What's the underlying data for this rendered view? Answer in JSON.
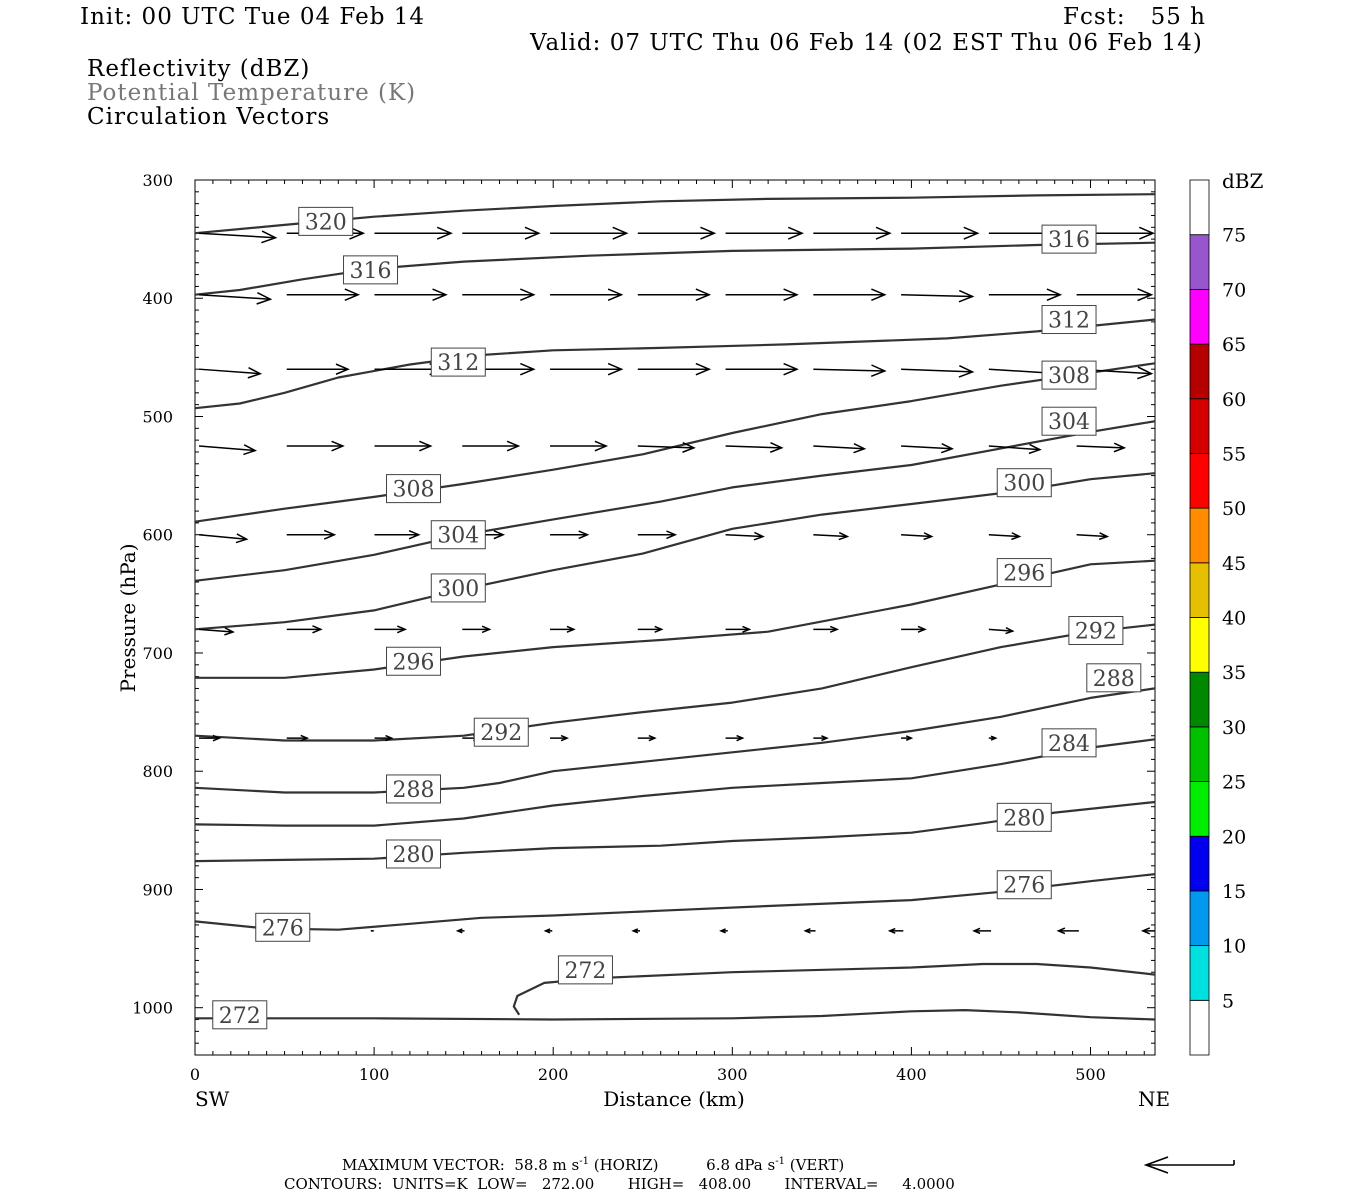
{
  "header": {
    "init": "Init: 00 UTC Tue 04 Feb 14",
    "fcst": "Fcst:   55 h",
    "valid": "Valid: 07 UTC Thu 06 Feb 14 (02 EST Thu 06 Feb 14)",
    "field1": "Reflectivity (dBZ)",
    "field2": "Potential Temperature (K)",
    "field3": "Circulation Vectors"
  },
  "footer": {
    "max_vector_prefix": "MAXIMUM VECTOR:  58.8 m s",
    "max_vector_exp1": "-1",
    "max_vector_mid": " (HORIZ)          6.8 dPa s",
    "max_vector_exp2": "-1",
    "max_vector_suffix": " (VERT)",
    "contours": "CONTOURS:  UNITS=K  LOW=   272.00       HIGH=   408.00       INTERVAL=     4.0000"
  },
  "colors": {
    "contour": "#333333",
    "label_text": "#444444",
    "vector": "#000000",
    "colorbar": [
      "#ffffff",
      "#00e0e0",
      "#0099ee",
      "#0000ee",
      "#00ee00",
      "#00c000",
      "#008800",
      "#ffff00",
      "#e6c000",
      "#ff8c00",
      "#ff0000",
      "#d40000",
      "#b40000",
      "#ff00ff",
      "#9955cc",
      "#ffffff"
    ]
  },
  "chart_data": {
    "type": "cross-section",
    "xlabel": "Distance (km)",
    "ylabel": "Pressure (hPa)",
    "x_left_label": "SW",
    "x_right_label": "NE",
    "xlim": [
      0,
      536
    ],
    "ylim": [
      1040,
      300
    ],
    "x_ticks": [
      0,
      100,
      200,
      300,
      400,
      500
    ],
    "y_ticks": [
      300,
      400,
      500,
      600,
      700,
      800,
      900,
      1000
    ],
    "colorbar": {
      "unit": "dBZ",
      "labels": [
        "5",
        "10",
        "15",
        "20",
        "25",
        "30",
        "35",
        "40",
        "45",
        "50",
        "55",
        "60",
        "65",
        "70",
        "75"
      ]
    },
    "contours": [
      {
        "level": 320,
        "points": [
          [
            0,
            345
          ],
          [
            50,
            338
          ],
          [
            100,
            331
          ],
          [
            150,
            326
          ],
          [
            200,
            322
          ],
          [
            260,
            318
          ],
          [
            320,
            316
          ],
          [
            400,
            315
          ],
          [
            470,
            313
          ],
          [
            536,
            312
          ]
        ]
      },
      {
        "level": 316,
        "points": [
          [
            0,
            397
          ],
          [
            25,
            393
          ],
          [
            60,
            384
          ],
          [
            100,
            375
          ],
          [
            150,
            369
          ],
          [
            220,
            364
          ],
          [
            300,
            360
          ],
          [
            400,
            358
          ],
          [
            470,
            355
          ],
          [
            536,
            353
          ]
        ]
      },
      {
        "level": 312,
        "points": [
          [
            0,
            493
          ],
          [
            25,
            489
          ],
          [
            50,
            480
          ],
          [
            80,
            467
          ],
          [
            120,
            456
          ],
          [
            160,
            448
          ],
          [
            200,
            444
          ],
          [
            260,
            442
          ],
          [
            330,
            439
          ],
          [
            420,
            434
          ],
          [
            470,
            428
          ],
          [
            536,
            418
          ]
        ]
      },
      {
        "level": 308,
        "points": [
          [
            0,
            589
          ],
          [
            50,
            578
          ],
          [
            100,
            568
          ],
          [
            150,
            557
          ],
          [
            200,
            545
          ],
          [
            250,
            532
          ],
          [
            300,
            514
          ],
          [
            350,
            498
          ],
          [
            400,
            487
          ],
          [
            450,
            474
          ],
          [
            500,
            463
          ],
          [
            536,
            455
          ]
        ]
      },
      {
        "level": 304,
        "points": [
          [
            0,
            639
          ],
          [
            50,
            630
          ],
          [
            100,
            617
          ],
          [
            150,
            600
          ],
          [
            200,
            587
          ],
          [
            260,
            572
          ],
          [
            300,
            560
          ],
          [
            350,
            550
          ],
          [
            400,
            541
          ],
          [
            450,
            527
          ],
          [
            500,
            513
          ],
          [
            536,
            504
          ]
        ]
      },
      {
        "level": 300,
        "points": [
          [
            0,
            680
          ],
          [
            50,
            674
          ],
          [
            100,
            664
          ],
          [
            150,
            646
          ],
          [
            200,
            630
          ],
          [
            250,
            616
          ],
          [
            300,
            595
          ],
          [
            350,
            583
          ],
          [
            400,
            574
          ],
          [
            460,
            563
          ],
          [
            500,
            553
          ],
          [
            536,
            548
          ]
        ]
      },
      {
        "level": 296,
        "points": [
          [
            0,
            721
          ],
          [
            50,
            721
          ],
          [
            100,
            714
          ],
          [
            150,
            703
          ],
          [
            200,
            695
          ],
          [
            260,
            689
          ],
          [
            320,
            682
          ],
          [
            400,
            659
          ],
          [
            450,
            642
          ],
          [
            500,
            625
          ],
          [
            536,
            622
          ]
        ]
      },
      {
        "level": 292,
        "points": [
          [
            0,
            770
          ],
          [
            50,
            774
          ],
          [
            100,
            774
          ],
          [
            150,
            770
          ],
          [
            200,
            759
          ],
          [
            250,
            750
          ],
          [
            300,
            742
          ],
          [
            350,
            730
          ],
          [
            400,
            712
          ],
          [
            450,
            695
          ],
          [
            500,
            682
          ],
          [
            536,
            676
          ]
        ]
      },
      {
        "level": 288,
        "points": [
          [
            0,
            814
          ],
          [
            50,
            818
          ],
          [
            100,
            818
          ],
          [
            150,
            814
          ],
          [
            170,
            810
          ],
          [
            200,
            800
          ],
          [
            250,
            792
          ],
          [
            300,
            784
          ],
          [
            350,
            776
          ],
          [
            400,
            766
          ],
          [
            450,
            754
          ],
          [
            500,
            738
          ],
          [
            536,
            730
          ]
        ]
      },
      {
        "level": 284,
        "points": [
          [
            0,
            845
          ],
          [
            50,
            846
          ],
          [
            100,
            846
          ],
          [
            150,
            840
          ],
          [
            200,
            829
          ],
          [
            250,
            821
          ],
          [
            300,
            814
          ],
          [
            350,
            810
          ],
          [
            400,
            806
          ],
          [
            450,
            794
          ],
          [
            500,
            780
          ],
          [
            536,
            773
          ]
        ]
      },
      {
        "level": 280,
        "points": [
          [
            0,
            876
          ],
          [
            50,
            875
          ],
          [
            100,
            874
          ],
          [
            150,
            869
          ],
          [
            200,
            865
          ],
          [
            260,
            863
          ],
          [
            300,
            859
          ],
          [
            350,
            856
          ],
          [
            400,
            852
          ],
          [
            440,
            844
          ],
          [
            480,
            835
          ],
          [
            536,
            826
          ]
        ]
      },
      {
        "level": 276,
        "points": [
          [
            0,
            927
          ],
          [
            40,
            933
          ],
          [
            80,
            934
          ],
          [
            120,
            929
          ],
          [
            160,
            924
          ],
          [
            200,
            922
          ],
          [
            260,
            918
          ],
          [
            320,
            914
          ],
          [
            400,
            909
          ],
          [
            450,
            902
          ],
          [
            500,
            893
          ],
          [
            536,
            887
          ]
        ]
      },
      {
        "level": 272,
        "points": [
          [
            0,
            1009
          ],
          [
            100,
            1009
          ],
          [
            200,
            1010
          ],
          [
            300,
            1009
          ],
          [
            350,
            1007
          ],
          [
            400,
            1003
          ],
          [
            430,
            1002
          ],
          [
            460,
            1004
          ],
          [
            500,
            1008
          ],
          [
            536,
            1010
          ]
        ]
      },
      {
        "level": 272,
        "points": [
          [
            181,
            1006
          ],
          [
            178,
            999
          ],
          [
            180,
            990
          ],
          [
            195,
            979
          ],
          [
            225,
            975
          ],
          [
            300,
            970
          ],
          [
            400,
            966
          ],
          [
            440,
            963
          ],
          [
            470,
            963
          ],
          [
            500,
            966
          ],
          [
            536,
            972
          ]
        ]
      }
    ],
    "contour_labels": [
      {
        "text": "320",
        "x": 73,
        "p": 335
      },
      {
        "text": "316",
        "x": 488,
        "p": 350
      },
      {
        "text": "316",
        "x": 98,
        "p": 376
      },
      {
        "text": "312",
        "x": 488,
        "p": 418
      },
      {
        "text": "312",
        "x": 147,
        "p": 454
      },
      {
        "text": "308",
        "x": 488,
        "p": 465
      },
      {
        "text": "304",
        "x": 488,
        "p": 504
      },
      {
        "text": "308",
        "x": 122,
        "p": 561
      },
      {
        "text": "300",
        "x": 463,
        "p": 556
      },
      {
        "text": "304",
        "x": 147,
        "p": 600
      },
      {
        "text": "300",
        "x": 147,
        "p": 645
      },
      {
        "text": "296",
        "x": 463,
        "p": 632
      },
      {
        "text": "292",
        "x": 503,
        "p": 681
      },
      {
        "text": "296",
        "x": 122,
        "p": 707
      },
      {
        "text": "288",
        "x": 513,
        "p": 721
      },
      {
        "text": "292",
        "x": 171,
        "p": 767
      },
      {
        "text": "284",
        "x": 488,
        "p": 776
      },
      {
        "text": "288",
        "x": 122,
        "p": 815
      },
      {
        "text": "280",
        "x": 463,
        "p": 839
      },
      {
        "text": "280",
        "x": 122,
        "p": 870
      },
      {
        "text": "276",
        "x": 463,
        "p": 896
      },
      {
        "text": "276",
        "x": 49,
        "p": 932
      },
      {
        "text": "272",
        "x": 218,
        "p": 968
      },
      {
        "text": "272",
        "x": 25,
        "p": 1006
      }
    ],
    "vector_rows": [
      {
        "p": 345,
        "x": [
          0,
          49,
          98,
          147,
          196,
          245,
          294,
          343,
          392,
          441,
          490
        ],
        "u": [
          45,
          45,
          45,
          45,
          45,
          45,
          45,
          45,
          45,
          45,
          45
        ],
        "w": [
          -5,
          0,
          0,
          0,
          0,
          0,
          0,
          0,
          0,
          0,
          0
        ]
      },
      {
        "p": 397,
        "x": [
          0,
          49,
          98,
          147,
          196,
          245,
          294,
          343,
          392,
          441,
          490
        ],
        "u": [
          42,
          42,
          42,
          42,
          42,
          42,
          42,
          42,
          42,
          42,
          44
        ],
        "w": [
          -5,
          0,
          0,
          0,
          0,
          0,
          0,
          0,
          -2,
          0,
          0
        ]
      },
      {
        "p": 460,
        "x": [
          0,
          49,
          98,
          147,
          196,
          245,
          294,
          343,
          392,
          441,
          490
        ],
        "u": [
          36,
          36,
          40,
          42,
          42,
          42,
          42,
          42,
          42,
          42,
          44
        ],
        "w": [
          -5,
          0,
          0,
          0,
          0,
          0,
          0,
          -2,
          -3,
          -5,
          -5
        ]
      },
      {
        "p": 525,
        "x": [
          0,
          49,
          98,
          147,
          196,
          245,
          294,
          343,
          392,
          441,
          490
        ],
        "u": [
          33,
          33,
          33,
          33,
          33,
          33,
          33,
          30,
          30,
          30,
          28
        ],
        "w": [
          -5,
          0,
          0,
          0,
          0,
          -2,
          -2,
          -3,
          -3,
          -4,
          -2
        ]
      },
      {
        "p": 600,
        "x": [
          0,
          49,
          98,
          147,
          196,
          245,
          294,
          343,
          392,
          441,
          490
        ],
        "u": [
          28,
          28,
          26,
          24,
          22,
          22,
          22,
          20,
          18,
          18,
          18
        ],
        "w": [
          -5,
          0,
          0,
          0,
          0,
          0,
          -2,
          -2,
          -2,
          -2,
          -2
        ]
      },
      {
        "p": 680,
        "x": [
          0,
          49,
          98,
          147,
          196,
          245,
          294,
          343,
          392,
          441,
          490
        ],
        "u": [
          20,
          20,
          18,
          16,
          14,
          14,
          14,
          14,
          14,
          14,
          14
        ],
        "w": [
          -3,
          0,
          0,
          0,
          0,
          0,
          0,
          0,
          0,
          -2,
          0
        ]
      },
      {
        "p": 772,
        "x": [
          0,
          49,
          98,
          147,
          196,
          245,
          294,
          343,
          392,
          441,
          490
        ],
        "u": [
          12,
          12,
          10,
          10,
          10,
          10,
          10,
          8,
          6,
          4,
          0
        ],
        "w": [
          0,
          0,
          0,
          0,
          0,
          0,
          0,
          0,
          0,
          0,
          0
        ]
      },
      {
        "p": 935,
        "x": [
          0,
          49,
          98,
          147,
          196,
          245,
          294,
          343,
          392,
          441,
          490,
          536
        ],
        "u": [
          0,
          0,
          -4,
          -4,
          -4,
          -4,
          -6,
          -8,
          -10,
          -12,
          -14,
          -12
        ],
        "w": [
          0,
          0,
          0,
          0,
          0,
          0,
          0,
          0,
          0,
          0,
          0,
          0
        ]
      }
    ]
  }
}
